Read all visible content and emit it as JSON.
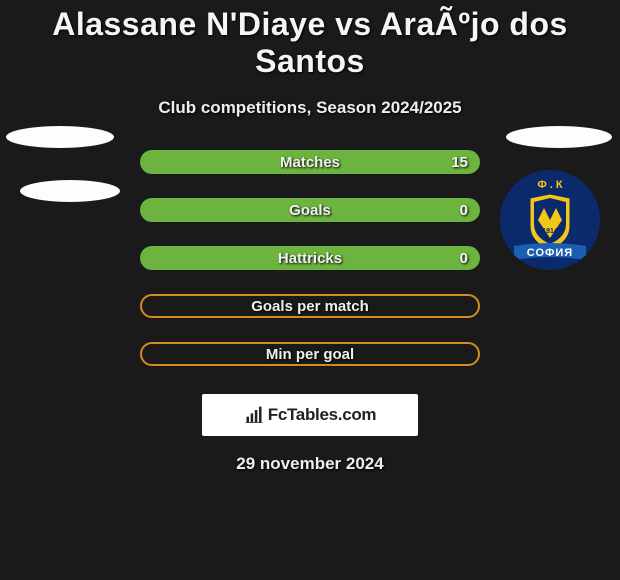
{
  "title": "Alassane N'Diaye vs AraÃºjo dos Santos",
  "subtitle": "Club competitions, Season 2024/2025",
  "date_text": "29 november 2024",
  "badge": {
    "text": "FcTables.com"
  },
  "colors": {
    "bar_green": "#6db33f",
    "bar_orange": "#d68b1f",
    "outline_orange": "#d68b1f",
    "background": "#1a1a1a",
    "text": "#f0f0f0"
  },
  "stats": [
    {
      "label": "Matches",
      "value": "15",
      "filled": true,
      "fill_color": "#6db33f",
      "fill_pct": 100,
      "show_value": true
    },
    {
      "label": "Goals",
      "value": "0",
      "filled": true,
      "fill_color": "#6db33f",
      "fill_pct": 100,
      "show_value": true
    },
    {
      "label": "Hattricks",
      "value": "0",
      "filled": true,
      "fill_color": "#6db33f",
      "fill_pct": 100,
      "show_value": true
    },
    {
      "label": "Goals per match",
      "value": "",
      "filled": false,
      "fill_color": "#d68b1f",
      "fill_pct": 0,
      "show_value": false
    },
    {
      "label": "Min per goal",
      "value": "",
      "filled": false,
      "fill_color": "#d68b1f",
      "fill_pct": 0,
      "show_value": false
    }
  ],
  "club_logo": {
    "top_text": "Ф . К",
    "year": "1914",
    "bottom_text": "СОФИЯ",
    "bg": "#0b2a6b",
    "accent": "#f5c518",
    "ribbon": "#1b5fb3"
  }
}
